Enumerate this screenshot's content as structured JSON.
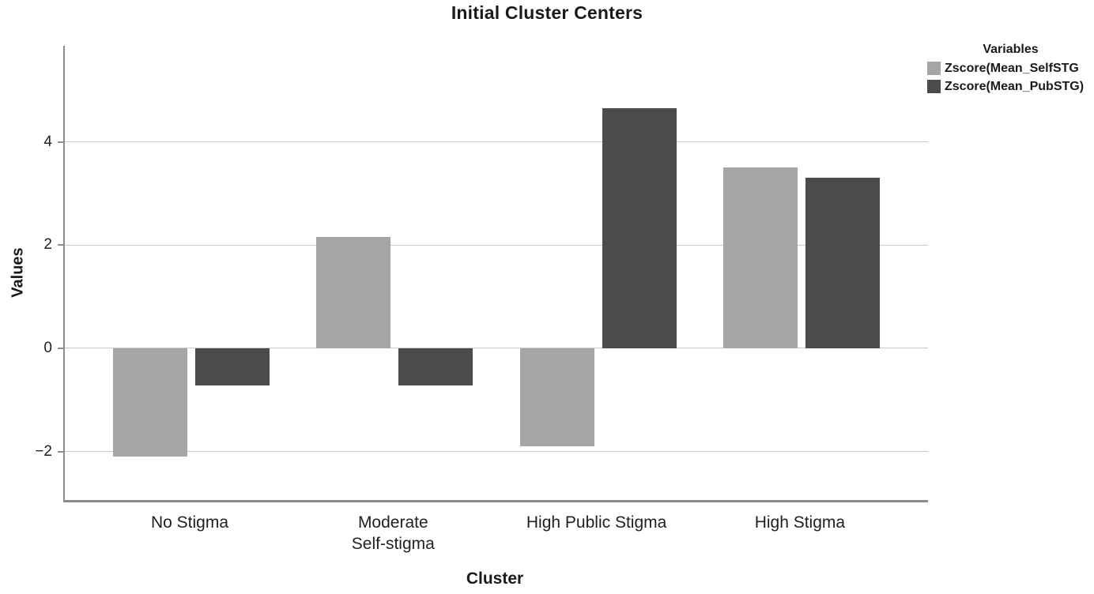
{
  "chart_data": {
    "type": "bar",
    "title": "Initial Cluster Centers",
    "xlabel": "Cluster",
    "ylabel": "Values",
    "categories": [
      "No Stigma",
      "Moderate\nSelf-stigma",
      "High Public Stigma",
      "High Stigma"
    ],
    "series": [
      {
        "name": "Zscore(Mean_SelfSTG",
        "color": "#a5a5a5",
        "values": [
          -2.1,
          2.15,
          -1.9,
          3.5
        ]
      },
      {
        "name": "Zscore(Mean_PubSTG)",
        "color": "#4b4b4b",
        "values": [
          -0.72,
          -0.72,
          4.65,
          3.3
        ]
      }
    ],
    "legend": {
      "title": "Variables",
      "position": "outside-top-right"
    },
    "yticks": [
      -2,
      0,
      2,
      4
    ],
    "ylim": [
      -2.94,
      5.86
    ],
    "grid": true,
    "colors": {
      "gridline": "#c9c9c9",
      "axis": "#8c8c8c",
      "text": "#1f1f1f"
    }
  }
}
